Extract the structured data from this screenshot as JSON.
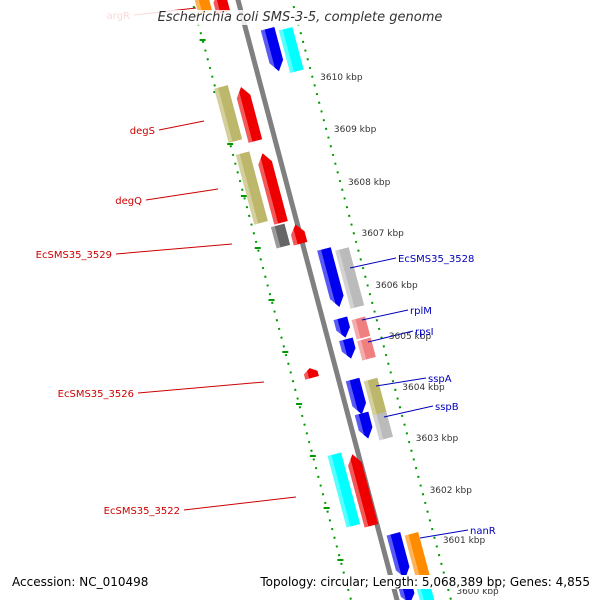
{
  "title": "Escherichia coli SMS-3-5, complete genome",
  "footer": {
    "accession": "Accession: NC_010498",
    "summary": "Topology: circular; Length: 5,068,389 bp; Genes: 4,855"
  },
  "scale_labels": [
    "3610 kbp",
    "3609 kbp",
    "3608 kbp",
    "3607 kbp",
    "3606 kbp",
    "3605 kbp",
    "3604 kbp",
    "3603 kbp",
    "3602 kbp",
    "3601 kbp",
    "3600 kbp"
  ],
  "gene_labels": {
    "reverse": [
      "argR",
      "degS",
      "degQ",
      "EcSMS35_3529",
      "EcSMS35_3526",
      "EcSMS35_3522"
    ],
    "forward": [
      "EcSMS35_3528",
      "rplM",
      "rpsI",
      "sspA",
      "sspB",
      "nanR"
    ]
  },
  "colors": {
    "reverse_label": "#cc0000",
    "forward_label": "#0000bb",
    "cds_forward": "#0000ee",
    "cds_reverse": "#ee0000",
    "cog_olive": "#bdb76b",
    "cog_cyan": "#00ffff",
    "cog_gray": "#bbbbbb",
    "cog_pink": "#f08080",
    "cog_orange": "#ff8c00",
    "cog_dark": "#666666",
    "ticks": "#009900",
    "backbone": "#808080"
  }
}
